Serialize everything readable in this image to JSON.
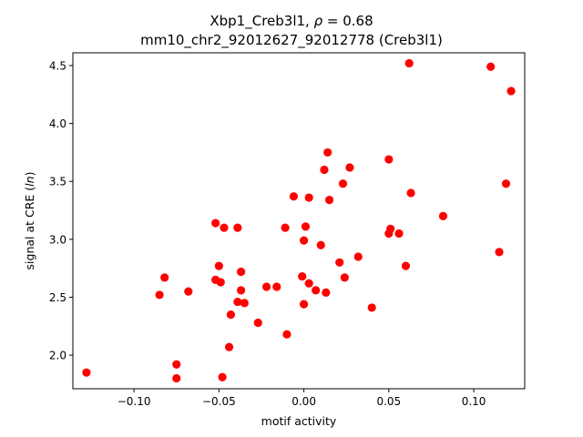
{
  "chart_data": {
    "type": "scatter",
    "title_line1_prefix": "Xbp1_Creb3l1, ",
    "title_line1_rho": "ρ",
    "title_line1_suffix": " = 0.68",
    "title_line2": "mm10_chr2_92012627_92012778 (Creb3l1)",
    "xlabel": "motif activity",
    "ylabel_prefix": "signal at CRE (",
    "ylabel_italic": "ln",
    "ylabel_suffix": ")",
    "xlim": [
      -0.136,
      0.13
    ],
    "ylim": [
      1.71,
      4.61
    ],
    "xticks": [
      -0.1,
      -0.05,
      0.0,
      0.05,
      0.1
    ],
    "xtick_labels": [
      "−0.10",
      "−0.05",
      "0.00",
      "0.05",
      "0.10"
    ],
    "yticks": [
      2.0,
      2.5,
      3.0,
      3.5,
      4.0,
      4.5
    ],
    "ytick_labels": [
      "2.0",
      "2.5",
      "3.0",
      "3.5",
      "4.0",
      "4.5"
    ],
    "grid": false,
    "marker_color": "#ff0000",
    "series": [
      {
        "points": [
          [
            -0.128,
            1.85
          ],
          [
            -0.085,
            2.52
          ],
          [
            -0.082,
            2.67
          ],
          [
            -0.075,
            1.92
          ],
          [
            -0.075,
            1.8
          ],
          [
            -0.068,
            2.55
          ],
          [
            -0.052,
            3.14
          ],
          [
            -0.052,
            2.65
          ],
          [
            -0.05,
            2.77
          ],
          [
            -0.049,
            2.63
          ],
          [
            -0.048,
            1.81
          ],
          [
            -0.047,
            3.1
          ],
          [
            -0.044,
            2.07
          ],
          [
            -0.043,
            2.35
          ],
          [
            -0.039,
            3.1
          ],
          [
            -0.039,
            2.46
          ],
          [
            -0.037,
            2.72
          ],
          [
            -0.037,
            2.56
          ],
          [
            -0.035,
            2.45
          ],
          [
            -0.027,
            2.28
          ],
          [
            -0.022,
            2.59
          ],
          [
            -0.016,
            2.59
          ],
          [
            -0.011,
            3.1
          ],
          [
            -0.01,
            2.18
          ],
          [
            -0.006,
            3.37
          ],
          [
            -0.001,
            2.68
          ],
          [
            0.0,
            2.99
          ],
          [
            0.0,
            2.44
          ],
          [
            0.001,
            3.11
          ],
          [
            0.003,
            2.62
          ],
          [
            0.003,
            3.36
          ],
          [
            0.007,
            2.56
          ],
          [
            0.01,
            2.95
          ],
          [
            0.012,
            3.6
          ],
          [
            0.013,
            2.54
          ],
          [
            0.014,
            3.75
          ],
          [
            0.015,
            3.34
          ],
          [
            0.021,
            2.8
          ],
          [
            0.023,
            3.48
          ],
          [
            0.024,
            2.67
          ],
          [
            0.027,
            3.62
          ],
          [
            0.032,
            2.85
          ],
          [
            0.04,
            2.41
          ],
          [
            0.05,
            3.69
          ],
          [
            0.05,
            3.05
          ],
          [
            0.051,
            3.09
          ],
          [
            0.056,
            3.05
          ],
          [
            0.06,
            2.77
          ],
          [
            0.062,
            4.52
          ],
          [
            0.063,
            3.4
          ],
          [
            0.082,
            3.2
          ],
          [
            0.11,
            4.49
          ],
          [
            0.115,
            2.89
          ],
          [
            0.119,
            3.48
          ],
          [
            0.122,
            4.28
          ]
        ]
      }
    ]
  }
}
